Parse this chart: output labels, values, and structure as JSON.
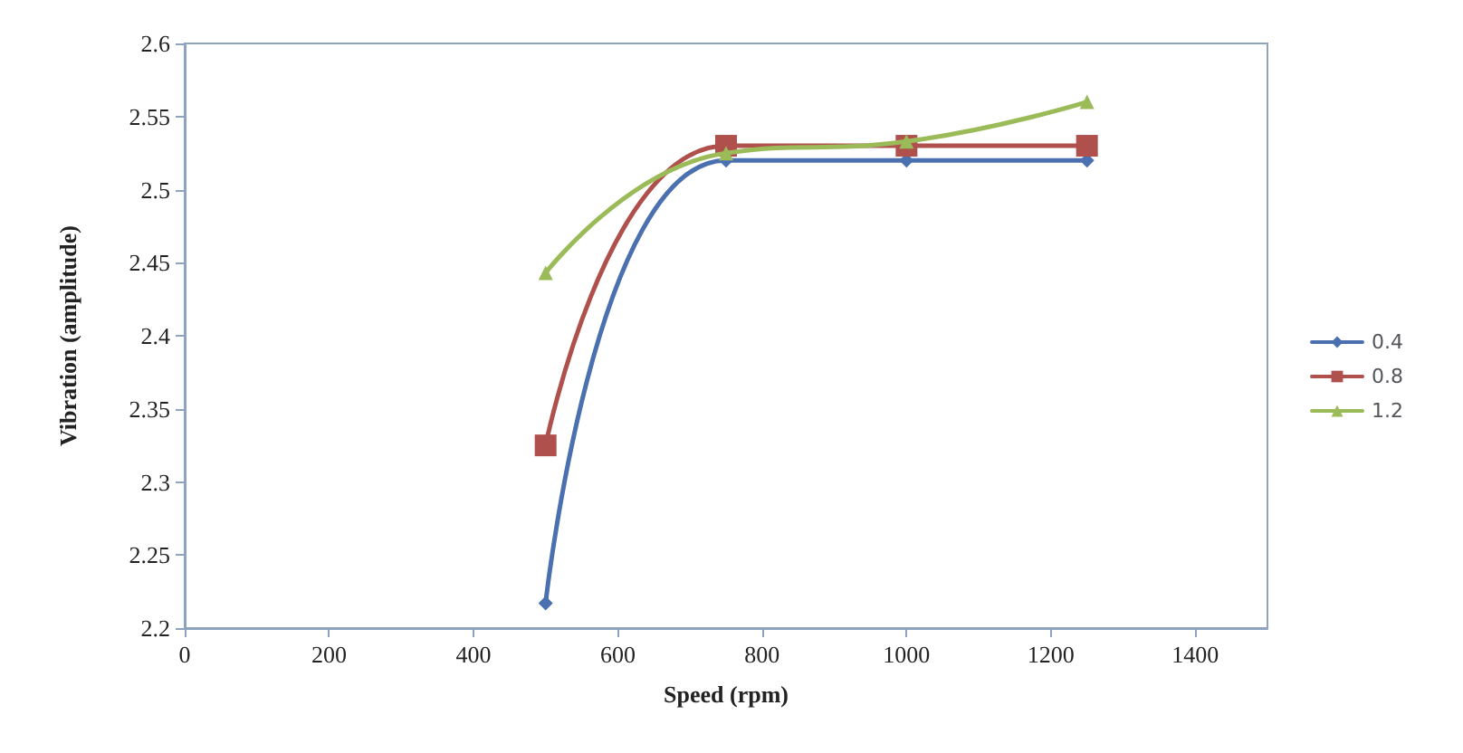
{
  "chart_data": {
    "type": "line",
    "xlabel": "Speed (rpm)",
    "ylabel": "Vibration (amplitude)",
    "x": [
      500,
      750,
      1000,
      1250
    ],
    "series": [
      {
        "name": "0.4",
        "color": "#4a70b0",
        "values": [
          2.217,
          2.52,
          2.52,
          2.52
        ],
        "marker": "diamond"
      },
      {
        "name": "0.8",
        "color": "#b0504c",
        "values": [
          2.325,
          2.53,
          2.53,
          2.53
        ],
        "marker": "square"
      },
      {
        "name": "1.2",
        "color": "#9bbb59",
        "values": [
          2.443,
          2.525,
          2.533,
          2.56
        ],
        "marker": "triangle"
      }
    ],
    "xlim": [
      0,
      1500
    ],
    "xticks": [
      0,
      200,
      400,
      600,
      800,
      1000,
      1200,
      1400
    ],
    "ylim": [
      2.2,
      2.6
    ],
    "yticks": [
      2.2,
      2.25,
      2.3,
      2.35,
      2.4,
      2.45,
      2.5,
      2.55,
      2.6
    ],
    "grid": false,
    "legend": "right",
    "line_style": "solid"
  }
}
